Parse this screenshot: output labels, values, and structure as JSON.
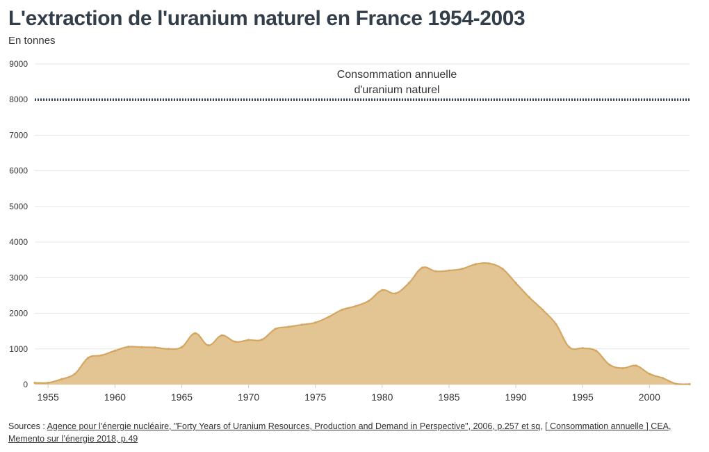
{
  "title": "L'extraction de l'uranium naturel en France 1954-2003",
  "subtitle": "En tonnes",
  "source": {
    "prefix": "Sources : ",
    "link1": "Agence pour l'énergie nucléaire, \"Forty Years of Uranium Resources, Production and Demand in Perspective\", 2006, p.257 et sq",
    "sep": ", ",
    "link2": "[ Consommation annuelle ] CEA, Memento sur l’énergie 2018, p.49"
  },
  "colors": {
    "area_fill": "#e2c592",
    "area_line": "#d4a661",
    "reference_line": "#3a4856",
    "grid": "#e6e6e6"
  },
  "chart_data": {
    "type": "area",
    "title": "L'extraction de l'uranium naturel en France 1954-2003",
    "subtitle": "En tonnes",
    "xlabel": "",
    "ylabel": "",
    "xlim": [
      1954,
      2003
    ],
    "ylim": [
      0,
      9000
    ],
    "yticks": [
      0,
      1000,
      2000,
      3000,
      4000,
      5000,
      6000,
      7000,
      8000,
      9000
    ],
    "xticks": [
      1955,
      1960,
      1965,
      1970,
      1975,
      1980,
      1985,
      1990,
      1995,
      2000
    ],
    "grid": true,
    "series": [
      {
        "x": [
          1954,
          1955,
          1956,
          1957,
          1958,
          1959,
          1960,
          1961,
          1962,
          1963,
          1964,
          1965,
          1966,
          1967,
          1968,
          1969,
          1970,
          1971,
          1972,
          1973,
          1974,
          1975,
          1976,
          1977,
          1978,
          1979,
          1980,
          1981,
          1982,
          1983,
          1984,
          1985,
          1986,
          1987,
          1988,
          1989,
          1990,
          1991,
          1992,
          1993,
          1994,
          1995,
          1996,
          1997,
          1998,
          1999,
          2000,
          2001,
          2002,
          2003
        ],
        "values": [
          50,
          50,
          150,
          300,
          750,
          820,
          950,
          1060,
          1050,
          1040,
          1000,
          1050,
          1440,
          1100,
          1380,
          1200,
          1250,
          1260,
          1560,
          1620,
          1680,
          1740,
          1900,
          2100,
          2200,
          2350,
          2650,
          2560,
          2850,
          3280,
          3180,
          3200,
          3250,
          3380,
          3400,
          3250,
          2850,
          2450,
          2100,
          1700,
          1050,
          1020,
          950,
          560,
          460,
          530,
          300,
          180,
          20,
          10
        ]
      }
    ],
    "annotations": [
      {
        "text_line1": "Consommation annuelle",
        "text_line2": "d'uranium naturel",
        "y": 8000
      }
    ]
  }
}
